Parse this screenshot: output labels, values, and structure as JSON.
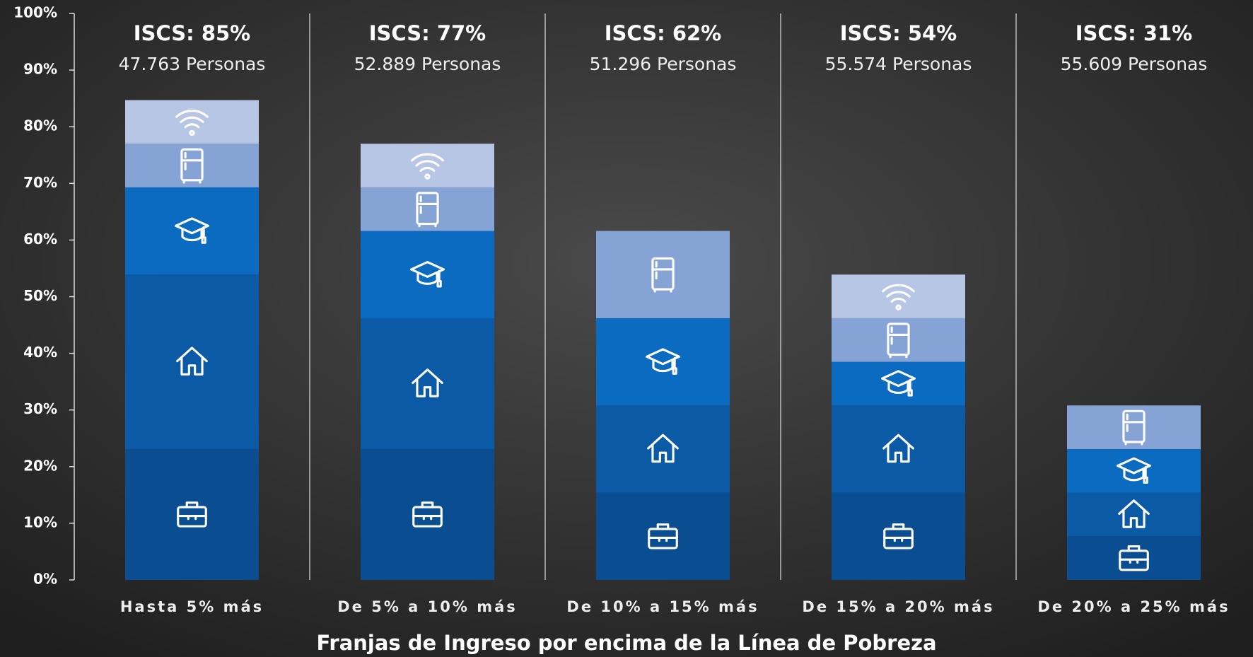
{
  "chart_data": {
    "type": "stacked_bar",
    "x_label": "Franjas de Ingreso por encima de la Línea de Pobreza",
    "categories": [
      "Hasta 5% más",
      "De 5% a 10% más",
      "De 10% a 15% más",
      "De 15% a 20% más",
      "De 20% a 25% más"
    ],
    "annotations": [
      {
        "title": "ISCS: 85%",
        "subtitle": "47.763 Personas"
      },
      {
        "title": "ISCS: 77%",
        "subtitle": "52.889 Personas"
      },
      {
        "title": "ISCS: 62%",
        "subtitle": "51.296 Personas"
      },
      {
        "title": "ISCS: 54%",
        "subtitle": "55.574 Personas"
      },
      {
        "title": "ISCS: 31%",
        "subtitle": "55.609 Personas"
      }
    ],
    "series": [
      {
        "color": "#0a4d90",
        "values": [
          23.1,
          23.1,
          15.4,
          15.4,
          7.7
        ]
      },
      {
        "color": "#0b5aa6",
        "values": [
          30.8,
          23.1,
          15.4,
          15.4,
          7.7
        ]
      },
      {
        "color": "#0a6bc0",
        "values": [
          15.4,
          15.4,
          15.4,
          7.7,
          7.7
        ]
      },
      {
        "color": "#86a3d6",
        "values": [
          7.7,
          7.7,
          15.4,
          7.7,
          7.7
        ]
      },
      {
        "color": "#b8c6e6",
        "values": [
          7.7,
          7.7,
          null,
          7.7,
          null
        ]
      }
    ],
    "ylim": [
      0,
      100
    ],
    "yticks": [
      {
        "value": 0,
        "label": "0%"
      },
      {
        "value": 10,
        "label": "10%"
      },
      {
        "value": 20,
        "label": "20%"
      },
      {
        "value": 30,
        "label": "30%"
      },
      {
        "value": 40,
        "label": "40%"
      },
      {
        "value": 50,
        "label": "50%"
      },
      {
        "value": 60,
        "label": "60%"
      },
      {
        "value": 70,
        "label": "70%"
      },
      {
        "value": 80,
        "label": "80%"
      },
      {
        "value": 90,
        "label": "90%"
      },
      {
        "value": 100,
        "label": "100%"
      }
    ]
  }
}
